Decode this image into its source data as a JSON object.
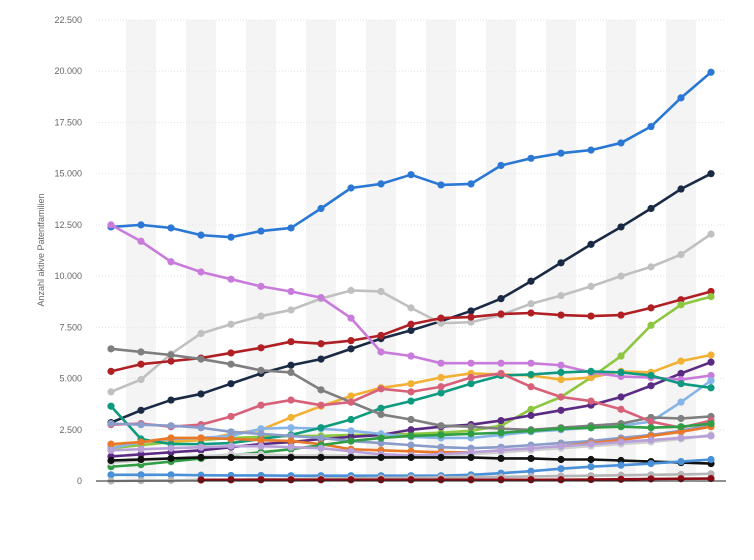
{
  "chart_data": {
    "type": "line",
    "title": "",
    "xlabel": "",
    "ylabel": "Anzahl aktive Patentfamilien",
    "ylim": [
      0,
      22500
    ],
    "y_ticks": [
      0,
      2500,
      5000,
      7500,
      10000,
      12500,
      15000,
      17500,
      20000,
      22500
    ],
    "y_tick_labels": [
      "0",
      "2.500",
      "5.000",
      "7.500",
      "10.000",
      "12.500",
      "15.000",
      "17.500",
      "20.000",
      "22.500"
    ],
    "grid": true,
    "x_count": 21,
    "series": [
      {
        "color": "#2b78d4",
        "values": [
          12400,
          12500,
          12350,
          12000,
          11900,
          12200,
          12350,
          13300,
          14300,
          14500,
          14950,
          14450,
          14500,
          15400,
          15750,
          16000,
          16150,
          16500,
          17300,
          18700,
          19950
        ]
      },
      {
        "color": "#1b2a44",
        "values": [
          2850,
          3450,
          3950,
          4250,
          4750,
          5250,
          5650,
          5950,
          6450,
          6950,
          7350,
          7800,
          8300,
          8900,
          9750,
          10650,
          11550,
          12400,
          13300,
          14250,
          15000
        ]
      },
      {
        "color": "#c0c0c0",
        "values": [
          4350,
          4950,
          6200,
          7200,
          7650,
          8050,
          8350,
          8900,
          9300,
          9250,
          8450,
          7700,
          7750,
          8100,
          8650,
          9050,
          9500,
          10000,
          10450,
          11050,
          12050
        ]
      },
      {
        "color": "#b01f24",
        "values": [
          5350,
          5700,
          5850,
          6000,
          6250,
          6500,
          6800,
          6700,
          6850,
          7100,
          7650,
          7950,
          8000,
          8150,
          8200,
          8100,
          8050,
          8100,
          8450,
          8850,
          9250
        ]
      },
      {
        "color": "#8dc63f",
        "values": [
          1600,
          1750,
          1900,
          2000,
          2100,
          2150,
          2200,
          2200,
          2250,
          2250,
          2300,
          2350,
          2450,
          2700,
          3500,
          4100,
          5050,
          6100,
          7600,
          8600,
          9000
        ]
      },
      {
        "color": "#f2b134",
        "values": [
          1750,
          1900,
          1950,
          2000,
          2300,
          2500,
          3100,
          3650,
          4150,
          4550,
          4750,
          5050,
          5250,
          5200,
          5150,
          4950,
          5050,
          5350,
          5300,
          5850,
          6150
        ]
      },
      {
        "color": "#5b2a83",
        "values": [
          1200,
          1300,
          1400,
          1500,
          1650,
          1800,
          1900,
          2050,
          2150,
          2250,
          2500,
          2650,
          2750,
          2950,
          3200,
          3450,
          3700,
          4100,
          4650,
          5250,
          5800
        ]
      },
      {
        "color": "#c97bdc",
        "values": [
          12500,
          11700,
          10700,
          10200,
          9850,
          9500,
          9250,
          8950,
          7950,
          6300,
          6100,
          5750,
          5750,
          5750,
          5750,
          5650,
          5300,
          5100,
          5050,
          4950,
          5150
        ]
      },
      {
        "color": "#86b4e8",
        "values": [
          1600,
          1900,
          2050,
          2100,
          2200,
          2550,
          2600,
          2550,
          2450,
          2300,
          2150,
          2100,
          2100,
          2250,
          2400,
          2500,
          2600,
          2700,
          2900,
          3850,
          4900
        ]
      },
      {
        "color": "#0e9a7e",
        "values": [
          3650,
          2050,
          1800,
          1800,
          1850,
          2050,
          2250,
          2600,
          3000,
          3550,
          3900,
          4300,
          4750,
          5150,
          5200,
          5300,
          5350,
          5300,
          5150,
          4750,
          4550
        ]
      },
      {
        "color": "#7f7f7f",
        "values": [
          6450,
          6300,
          6150,
          5950,
          5700,
          5400,
          5300,
          4450,
          3850,
          3250,
          3000,
          2700,
          2650,
          2550,
          2500,
          2600,
          2700,
          2800,
          3100,
          3050,
          3150
        ]
      },
      {
        "color": "#d8617a",
        "values": [
          2750,
          2800,
          2650,
          2750,
          3150,
          3700,
          3950,
          3700,
          3850,
          4500,
          4350,
          4600,
          5050,
          5250,
          4600,
          4100,
          3900,
          3500,
          2900,
          2600,
          2950
        ]
      },
      {
        "color": "#8a9cc9",
        "values": [
          2800,
          2750,
          2700,
          2600,
          2400,
          2300,
          2200,
          2100,
          1950,
          1850,
          1750,
          1650,
          1600,
          1650,
          1750,
          1850,
          1950,
          2100,
          2250,
          2450,
          2750
        ]
      },
      {
        "color": "#e8782a",
        "values": [
          1800,
          1900,
          2100,
          2100,
          2050,
          2000,
          1950,
          1800,
          1550,
          1500,
          1450,
          1400,
          1400,
          1450,
          1550,
          1700,
          1850,
          2000,
          2200,
          2400,
          2650
        ]
      },
      {
        "color": "#2f9e44",
        "values": [
          700,
          800,
          950,
          1100,
          1250,
          1400,
          1550,
          1750,
          1950,
          2100,
          2200,
          2250,
          2300,
          2350,
          2450,
          2550,
          2600,
          2650,
          2600,
          2650,
          2800
        ]
      },
      {
        "color": "#cfcfcf",
        "values": [
          900,
          1000,
          1100,
          1200,
          1300,
          1300,
          1250,
          1250,
          1250,
          1200,
          1200,
          1250,
          1300,
          1400,
          1500,
          1600,
          1700,
          1800,
          1900,
          2050,
          2250
        ]
      },
      {
        "color": "#b8a0d8",
        "values": [
          1500,
          1550,
          1600,
          1650,
          1700,
          1700,
          1650,
          1600,
          1450,
          1300,
          1250,
          1300,
          1400,
          1500,
          1600,
          1700,
          1800,
          1900,
          2000,
          2100,
          2200
        ]
      },
      {
        "color": "#111111",
        "values": [
          1000,
          1050,
          1100,
          1150,
          1150,
          1150,
          1150,
          1150,
          1150,
          1150,
          1150,
          1150,
          1150,
          1100,
          1100,
          1050,
          1050,
          1000,
          950,
          900,
          850
        ]
      },
      {
        "color": "#4a90d9",
        "values": [
          300,
          300,
          300,
          280,
          270,
          270,
          260,
          260,
          260,
          260,
          260,
          260,
          300,
          380,
          480,
          600,
          700,
          770,
          850,
          950,
          1050
        ]
      },
      {
        "color": "#b5b5b5",
        "values": [
          0,
          20,
          30,
          50,
          60,
          80,
          100,
          120,
          130,
          150,
          160,
          180,
          190,
          200,
          220,
          240,
          260,
          280,
          300,
          320,
          350
        ]
      },
      {
        "color": "#8b0a14",
        "values": [
          null,
          null,
          null,
          50,
          60,
          60,
          60,
          60,
          60,
          60,
          60,
          60,
          60,
          60,
          60,
          60,
          70,
          80,
          100,
          110,
          120
        ]
      }
    ]
  }
}
